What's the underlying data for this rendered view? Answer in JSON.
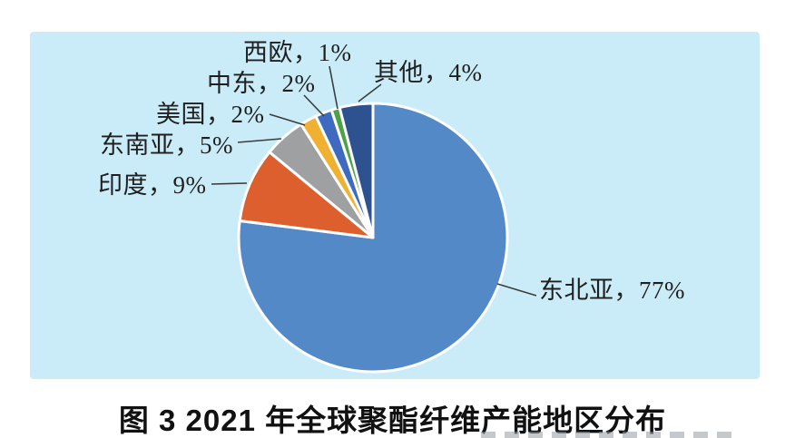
{
  "figure": {
    "caption": "图 3  2021 年全球聚酯纤维产能地区分布"
  },
  "chart_data": {
    "type": "pie",
    "title": "2021 年全球聚酯纤维产能地区分布",
    "unit": "%",
    "start_angle_deg": 0,
    "direction": "clockwise",
    "legend": "none",
    "labels_style": "callout-with-leader-lines",
    "slices": [
      {
        "name": "东北亚",
        "value": 77,
        "label": "东北亚，77%",
        "color": "#5389C7"
      },
      {
        "name": "印度",
        "value": 9,
        "label": "印度，9%",
        "color": "#DD5F2E"
      },
      {
        "name": "东南亚",
        "value": 5,
        "label": "东南亚，5%",
        "color": "#9EA0A2"
      },
      {
        "name": "美国",
        "value": 2,
        "label": "美国，2%",
        "color": "#F0B032"
      },
      {
        "name": "中东",
        "value": 2,
        "label": "中东，2%",
        "color": "#3E6ABF"
      },
      {
        "name": "西欧",
        "value": 1,
        "label": "西欧，1%",
        "color": "#4DA246"
      },
      {
        "name": "其他",
        "value": 4,
        "label": "其他，4%",
        "color": "#2E5190"
      }
    ]
  },
  "colors": {
    "panel_background": "#CAECF8",
    "page_background": "#FFFFFF",
    "slice_border": "#FFFFFF",
    "leader_line": "#3C3C3C",
    "label_text": "#1F1F1F",
    "caption_text": "#111111"
  }
}
